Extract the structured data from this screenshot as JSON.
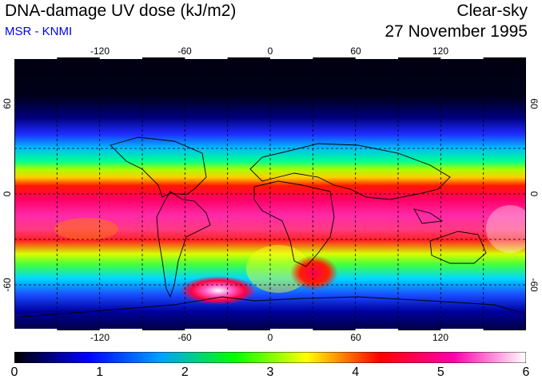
{
  "header": {
    "title": "DNA-damage UV dose (kJ/m2)",
    "subtitle": "MSR - KNMI",
    "sky_condition": "Clear-sky",
    "date": "27 November 1995"
  },
  "map": {
    "lon_labels": [
      "-120",
      "-60",
      "0",
      "60",
      "120"
    ],
    "lat_labels_left": [
      "60",
      "0",
      "-60"
    ],
    "lat_labels_right": [
      "60",
      "0",
      "-60"
    ],
    "lon_range": [
      -180,
      180
    ],
    "lat_range": [
      -90,
      90
    ],
    "graticule_step_deg": 30,
    "graticule_style": "dashed"
  },
  "colorbar": {
    "ticks": [
      "0",
      "1",
      "2",
      "3",
      "4",
      "5",
      "6"
    ],
    "range": [
      0,
      6
    ],
    "colors": [
      "#000000",
      "#0000ff",
      "#00a0ff",
      "#00ff00",
      "#ffff00",
      "#ff0000",
      "#ff00aa",
      "#ffffff"
    ]
  }
}
